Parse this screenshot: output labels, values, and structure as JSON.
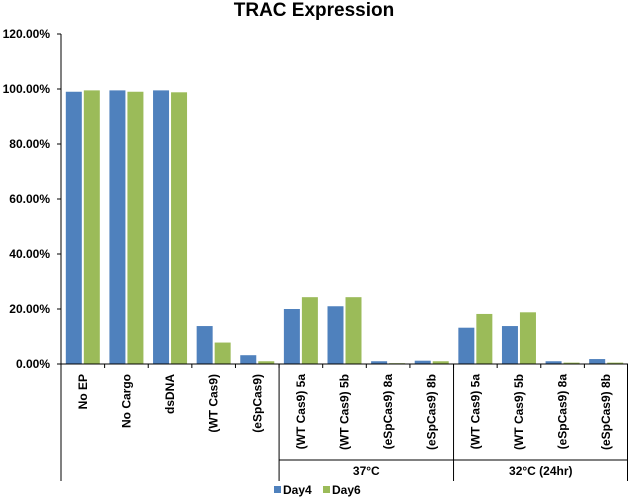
{
  "chart_data": {
    "type": "bar",
    "title": "TRAC Expression",
    "xlabel": "",
    "ylabel": "",
    "ylim": [
      0,
      120
    ],
    "y_ticks": [
      "0.00%",
      "20.00%",
      "40.00%",
      "60.00%",
      "80.00%",
      "100.00%",
      "120.00%"
    ],
    "categories": [
      "No EP",
      "No Cargo",
      "dsDNA",
      "(WT Cas9)",
      "(eSpCas9)",
      "(WT Cas9) 5a",
      "(WT Cas9) 5b",
      "(eSpCas9) 8a",
      "(eSpCas9) 8b",
      "(WT Cas9) 5a",
      "(WT Cas9) 5b",
      "(eSpCas9) 8a",
      "(eSpCas9) 8b"
    ],
    "groups": [
      {
        "label": "37°C",
        "start": 5,
        "end": 8
      },
      {
        "label": "32°C (24hr)",
        "start": 9,
        "end": 12
      }
    ],
    "series": [
      {
        "name": "Day4",
        "color": "#4f81bd",
        "values": [
          99.0,
          99.5,
          99.5,
          13.8,
          3.2,
          20.0,
          21.0,
          1.0,
          1.2,
          13.2,
          13.8,
          1.0,
          1.8
        ]
      },
      {
        "name": "Day6",
        "color": "#9bbb59",
        "values": [
          99.5,
          99.0,
          98.8,
          7.8,
          1.0,
          24.3,
          24.3,
          0.3,
          1.0,
          18.2,
          18.8,
          0.5,
          0.5
        ]
      }
    ],
    "legend_position": "bottom"
  }
}
